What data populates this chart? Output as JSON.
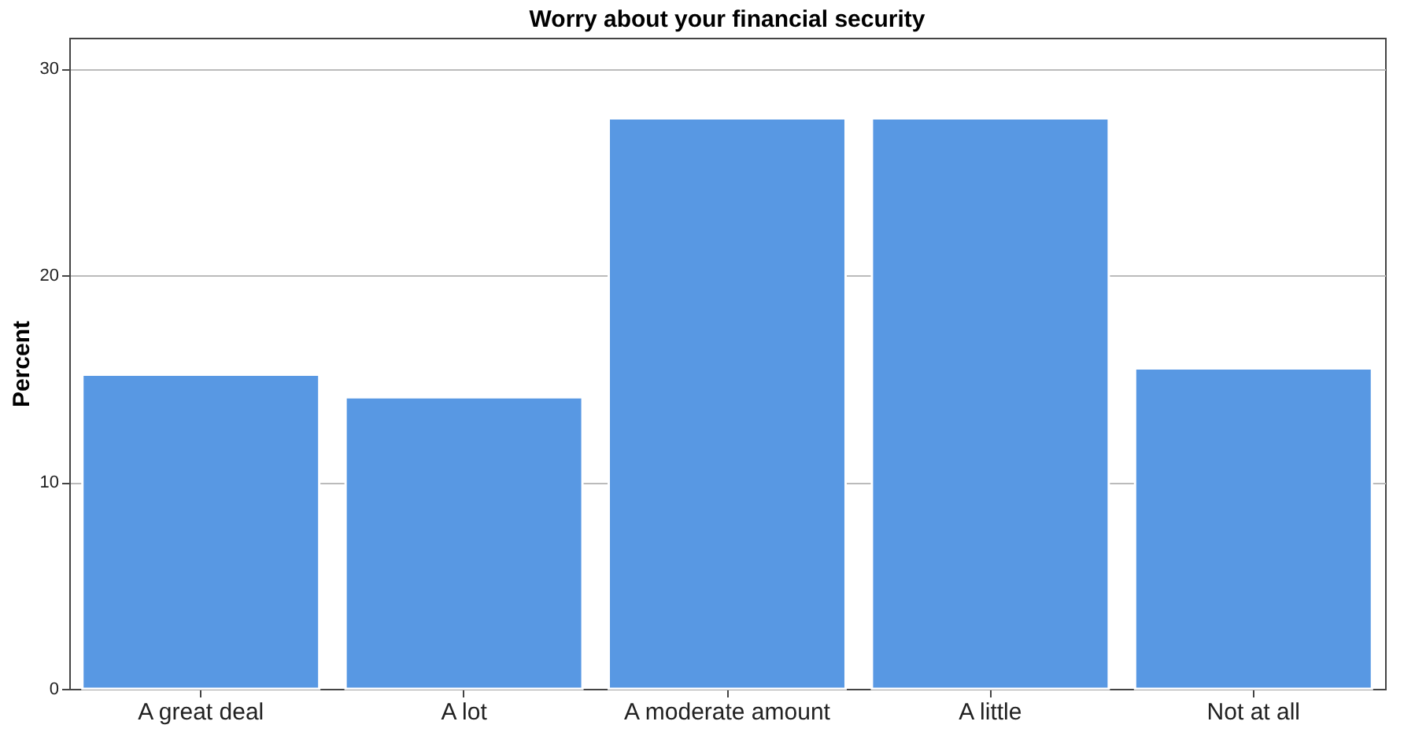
{
  "chart_data": {
    "type": "bar",
    "title": "Worry about your financial security",
    "ylabel": "Percent",
    "categories": [
      "A great deal",
      "A lot",
      "A moderate amount",
      "A little",
      "Not at all"
    ],
    "values": [
      15.2,
      14.1,
      27.6,
      27.6,
      15.5
    ],
    "color": "#5898e3",
    "ylim": [
      0,
      31.5
    ],
    "yticks": [
      0,
      10,
      20,
      30
    ],
    "grid": "y"
  }
}
